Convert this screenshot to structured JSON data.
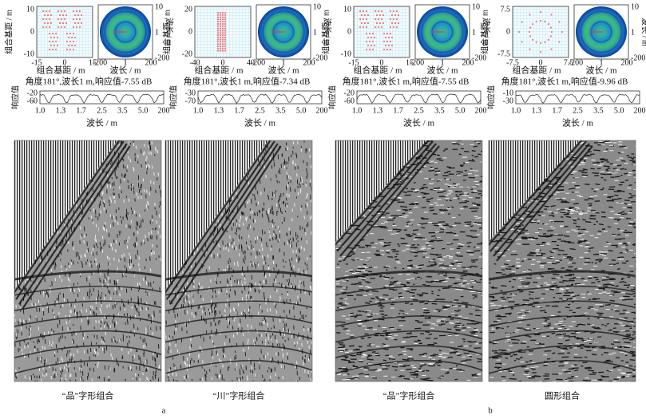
{
  "panels": [
    {
      "array_x_ticks": [
        "-15",
        "0",
        "15"
      ],
      "array_y_ticks": [
        "10",
        "0",
        "-10"
      ],
      "array_x_label": "组合基距 / m",
      "array_y_label": "组合基距 / m",
      "polar_x_ticks": [
        "-200",
        "1",
        "200"
      ],
      "polar_y_ticks": [
        "10",
        "1",
        "-200"
      ],
      "polar_x_label": "波长 / m",
      "polar_y_label": "波长 / m",
      "caption": "角度181°,波长1 m,响应值-7.55 dB",
      "response_y_label": "响应值",
      "response_y_ticks": [
        "-20",
        "-60"
      ],
      "response_x_ticks": [
        "1.0",
        "1.3",
        "1.7",
        "2.5",
        "3.5",
        "5.0",
        "200"
      ],
      "response_x_label": "波长 / m"
    },
    {
      "array_x_ticks": [
        "-40",
        "0",
        "40"
      ],
      "array_y_ticks": [
        "20",
        "0",
        "-20"
      ],
      "array_x_label": "组合基距 / m",
      "array_y_label": "组合基距 / m",
      "polar_x_ticks": [
        "-200",
        "1",
        "200"
      ],
      "polar_y_ticks": [
        "10",
        "1",
        "-200"
      ],
      "polar_x_label": "波长 / m",
      "polar_y_label": "波长 / m",
      "caption": "角度181°,波长1 m,响应值-7.34 dB",
      "response_y_label": "响应值",
      "response_y_ticks": [
        "-30",
        "-70"
      ],
      "response_x_ticks": [
        "1.0",
        "1.3",
        "1.7",
        "2.5",
        "3.5",
        "5.0",
        "200"
      ],
      "response_x_label": "波长 / m"
    },
    {
      "array_x_ticks": [
        "-15",
        "0",
        "15"
      ],
      "array_y_ticks": [
        "10",
        "0",
        "-10"
      ],
      "array_x_label": "组合基距 / m",
      "array_y_label": "组合基距 / m",
      "polar_x_ticks": [
        "-200",
        "1",
        "200"
      ],
      "polar_y_ticks": [
        "10",
        "1",
        "-200"
      ],
      "polar_x_label": "波长 / m",
      "polar_y_label": "波长 / m",
      "caption": "角度181°,波长1 m,响应值-7.55 dB",
      "response_y_label": "响应值",
      "response_y_ticks": [
        "-20",
        "-60"
      ],
      "response_x_ticks": [
        "1.0",
        "1.3",
        "1.7",
        "2.5",
        "3.5",
        "5.0",
        "200"
      ],
      "response_x_label": "波长 / m"
    },
    {
      "array_x_ticks": [
        "-7.5",
        "0",
        "7.5"
      ],
      "array_y_ticks": [
        "7.5",
        "0",
        "-7.5"
      ],
      "array_x_label": "组合基距 / m",
      "array_y_label": "组合基距 / m",
      "polar_x_ticks": [
        "-200",
        "1",
        "200"
      ],
      "polar_y_ticks": [
        "10",
        "1",
        "-200"
      ],
      "polar_x_label": "波长 / m",
      "polar_y_label": "波长 / m",
      "caption": "角度181°,波长1 m,响应值-9.96 dB",
      "response_y_label": "响应值",
      "response_y_ticks": [
        "-10",
        "-30"
      ],
      "response_x_ticks": [
        "1.0",
        "1.3",
        "1.7",
        "2.5",
        "3.5",
        "5.0",
        "200"
      ],
      "response_x_label": "波长 / m"
    }
  ],
  "sections": [
    {
      "images": [
        {
          "caption": "“品”字形组合"
        },
        {
          "caption": "“川”字形组合"
        }
      ],
      "label": "a"
    },
    {
      "images": [
        {
          "caption": "“品”字形组合"
        },
        {
          "caption": "圆形组合"
        }
      ],
      "label": "b"
    }
  ]
}
